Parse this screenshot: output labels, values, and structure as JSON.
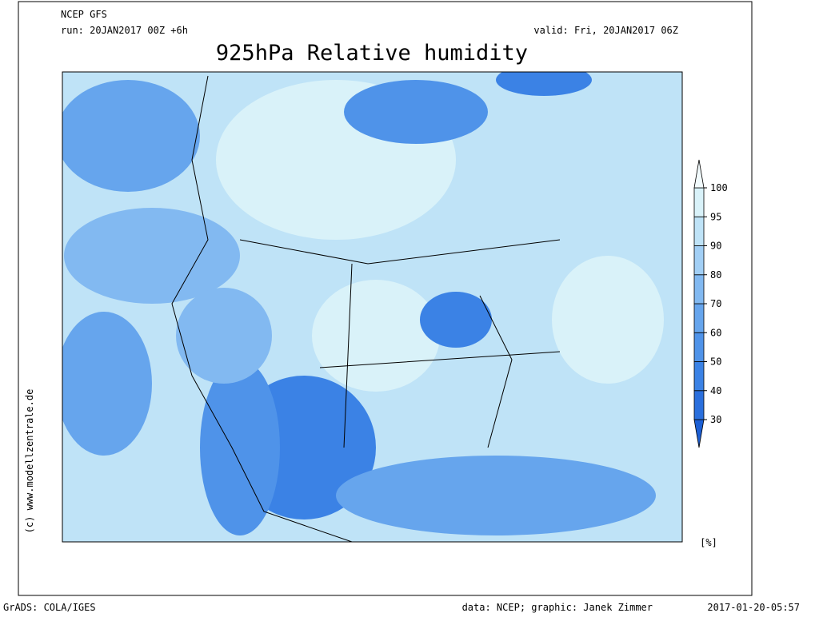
{
  "header": {
    "model": "NCEP GFS",
    "run": "run: 20JAN2017 00Z +6h",
    "valid": "valid: Fri, 20JAN2017 06Z",
    "title": "925hPa Relative humidity"
  },
  "colorbar": {
    "ticks": [
      30,
      40,
      50,
      60,
      70,
      80,
      90,
      95,
      100
    ],
    "colors": [
      "#1c5fd4",
      "#2a6fdd",
      "#3b82e5",
      "#4f93e9",
      "#66a5ed",
      "#82b9f1",
      "#a2cff5",
      "#bfe3f7",
      "#d9f2f9",
      "#f2fbfd"
    ],
    "unit": "[%]"
  },
  "credits": {
    "side": "(c) www.modellzentrale.de",
    "software": "GrADS: COLA/IGES",
    "source": "data: NCEP; graphic: Janek Zimmer",
    "timestamp": "2017-01-20-05:57"
  }
}
